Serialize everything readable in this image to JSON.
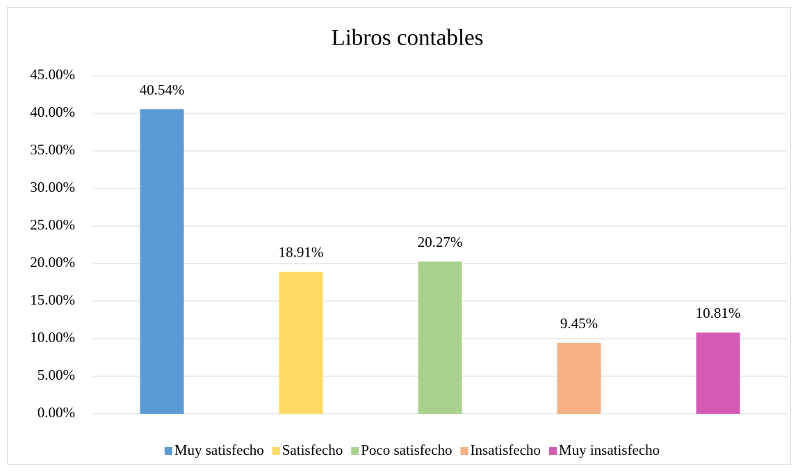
{
  "chart_data": {
    "type": "bar",
    "title": "Libros contables",
    "categories": [
      "Muy satisfecho",
      "Satisfecho",
      "Poco satisfecho",
      "Insatisfecho",
      "Muy insatisfecho"
    ],
    "values": [
      40.54,
      18.91,
      20.27,
      9.45,
      10.81
    ],
    "value_labels": [
      "40.54%",
      "18.91%",
      "20.27%",
      "9.45%",
      "10.81%"
    ],
    "colors": [
      "#5b9bd5",
      "#ffd966",
      "#a9d18e",
      "#f4b183",
      "#d45bb4"
    ],
    "ylim": [
      0,
      45
    ],
    "yticks": [
      {
        "value": 0,
        "label": "0.00%"
      },
      {
        "value": 5,
        "label": "5.00%"
      },
      {
        "value": 10,
        "label": "10.00%"
      },
      {
        "value": 15,
        "label": "15.00%"
      },
      {
        "value": 20,
        "label": "20.00%"
      },
      {
        "value": 25,
        "label": "25.00%"
      },
      {
        "value": 30,
        "label": "30.00%"
      },
      {
        "value": 35,
        "label": "35.00%"
      },
      {
        "value": 40,
        "label": "40.00%"
      },
      {
        "value": 45,
        "label": "45.00%"
      }
    ],
    "grid": true,
    "legend": "bottom"
  }
}
